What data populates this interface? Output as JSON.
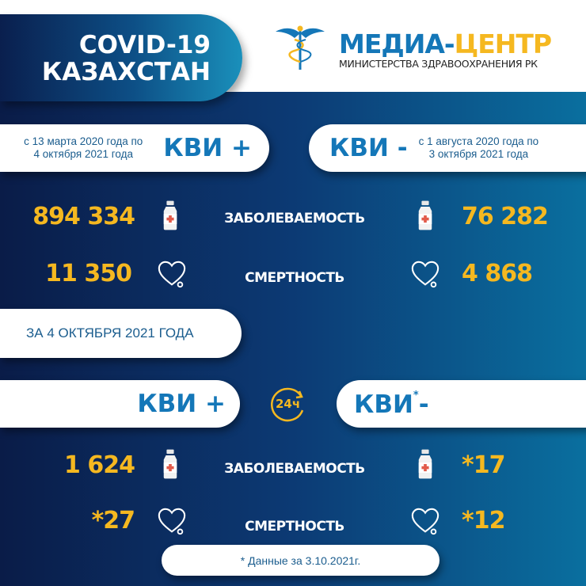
{
  "header": {
    "title_line1": "COVID-19",
    "title_line2": "КАЗАХСТАН",
    "logo": {
      "name_part1": "МЕДИА-",
      "name_part2": "ЦЕНТР",
      "subtitle": "МИНИСТЕРСТВА ЗДРАВООХРАНЕНИЯ РК",
      "icon": "caduceus-icon"
    }
  },
  "cumulative": {
    "positive": {
      "label": "КВИ +",
      "period": [
        "с 13 марта 2020 года по",
        "4 октября 2021 года"
      ],
      "cases": "894 334",
      "deaths": "11 350"
    },
    "negative": {
      "label": "КВИ -",
      "period": [
        "с 1 августа 2020 года по",
        "3 октября 2021 года"
      ],
      "cases": "76 282",
      "deaths": "4 868"
    },
    "cases_label": "ЗАБОЛЕВАЕМОСТЬ",
    "deaths_label": "СМЕРТНОСТЬ"
  },
  "daily": {
    "title": "ЗА 4 ОКТЯБРЯ 2021 ГОДА",
    "badge": "24ч",
    "positive": {
      "label": "КВИ +",
      "cases": "1 624",
      "deaths": "*27"
    },
    "negative": {
      "label": "КВИ",
      "label_star": "*",
      "label_suffix": "-",
      "cases": "*17",
      "deaths": "*12"
    },
    "cases_label": "ЗАБОЛЕВАЕМОСТЬ",
    "deaths_label": "СМЕРТНОСТЬ"
  },
  "footnote": "* Данные за 3.10.2021г.",
  "colors": {
    "accent_blue": "#1477b8",
    "gold": "#f5b820",
    "navy": "#0a1c48",
    "teal": "#0a6f9f"
  }
}
